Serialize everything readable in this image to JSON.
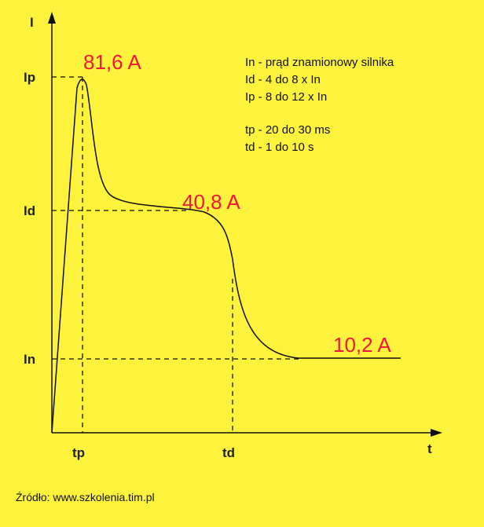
{
  "axes": {
    "y_label": "I",
    "x_label": "t"
  },
  "levels": {
    "ip": "Ip",
    "id": "Id",
    "in": "In"
  },
  "times": {
    "tp": "tp",
    "td": "td"
  },
  "currents": {
    "peak": "81,6 A",
    "plateau": "40,8 A",
    "rated": "10,2 A"
  },
  "legend": [
    "In - prąd znamionowy silnika",
    "Id - 4 do 8 x In",
    "Ip - 8 do 12 x In",
    "tp - 20 do 30 ms",
    "td - 1 do 10 s"
  ],
  "source": "Źródło: www.szkolenia.tim.pl"
}
